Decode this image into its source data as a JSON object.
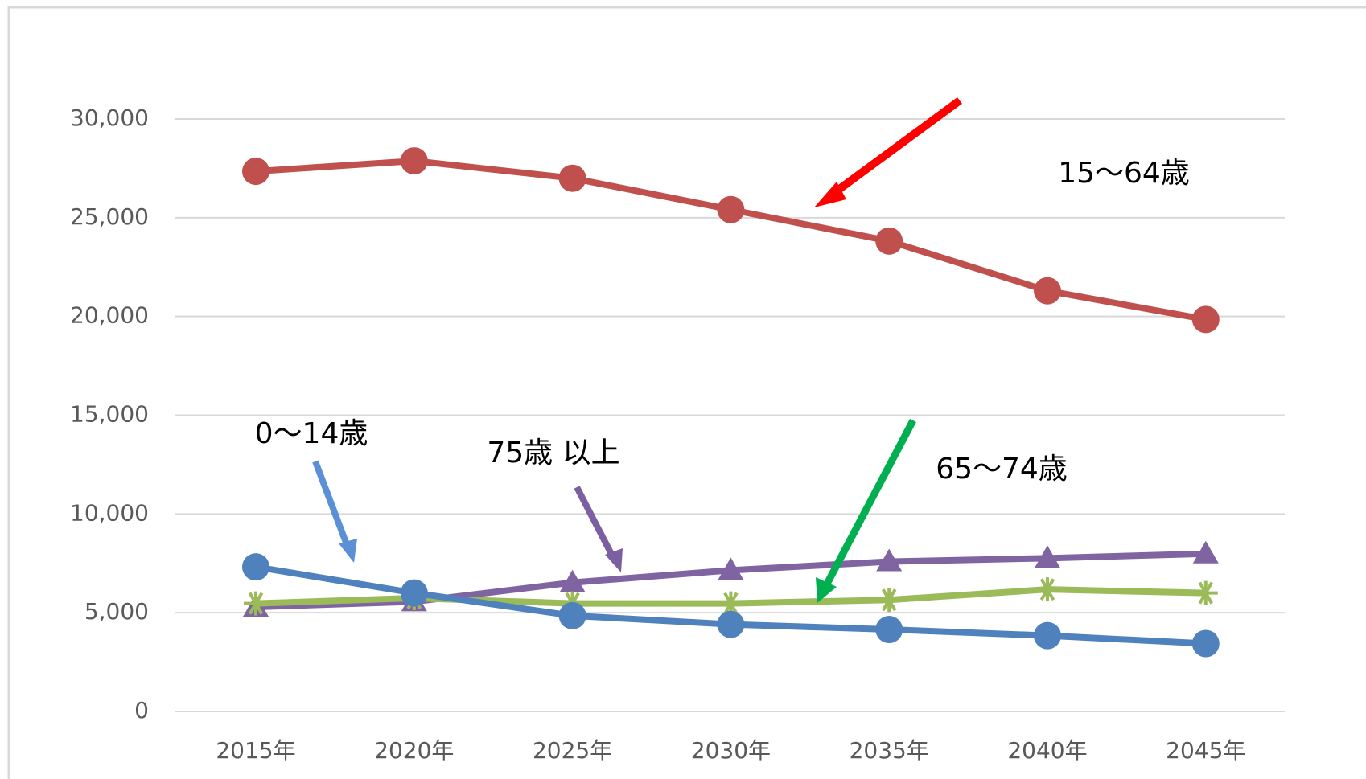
{
  "chart_data": {
    "type": "line",
    "categories": [
      "2015年",
      "2020年",
      "2025年",
      "2030年",
      "2035年",
      "2040年",
      "2045年"
    ],
    "series": [
      {
        "name": "15〜64歳",
        "color": "#c0504d",
        "marker": "circle",
        "values": [
          27350,
          27880,
          27000,
          25410,
          23820,
          21300,
          19850
        ]
      },
      {
        "name": "0〜14歳",
        "color": "#4f81bd",
        "marker": "circle",
        "values": [
          7320,
          6000,
          4850,
          4410,
          4150,
          3840,
          3440
        ]
      },
      {
        "name": "65〜74歳",
        "color": "#9bbb59",
        "marker": "star",
        "values": [
          5470,
          5740,
          5470,
          5470,
          5650,
          6180,
          6000
        ]
      },
      {
        "name": "75歳 以上",
        "color": "#8064a2",
        "marker": "triangle",
        "values": [
          5290,
          5560,
          6530,
          7150,
          7590,
          7760,
          7990
        ]
      }
    ],
    "ylim": [
      0,
      30000
    ],
    "yticks": [
      0,
      {
        "value": 5000,
        "label": "5,000"
      },
      {
        "value": 10000,
        "label": "10,000"
      },
      {
        "value": 15000,
        "label": "15,000"
      },
      {
        "value": 20000,
        "label": "20,000"
      },
      {
        "value": 25000,
        "label": "25,000"
      },
      {
        "value": 30000,
        "label": "30,000"
      }
    ],
    "grid": true
  }
}
